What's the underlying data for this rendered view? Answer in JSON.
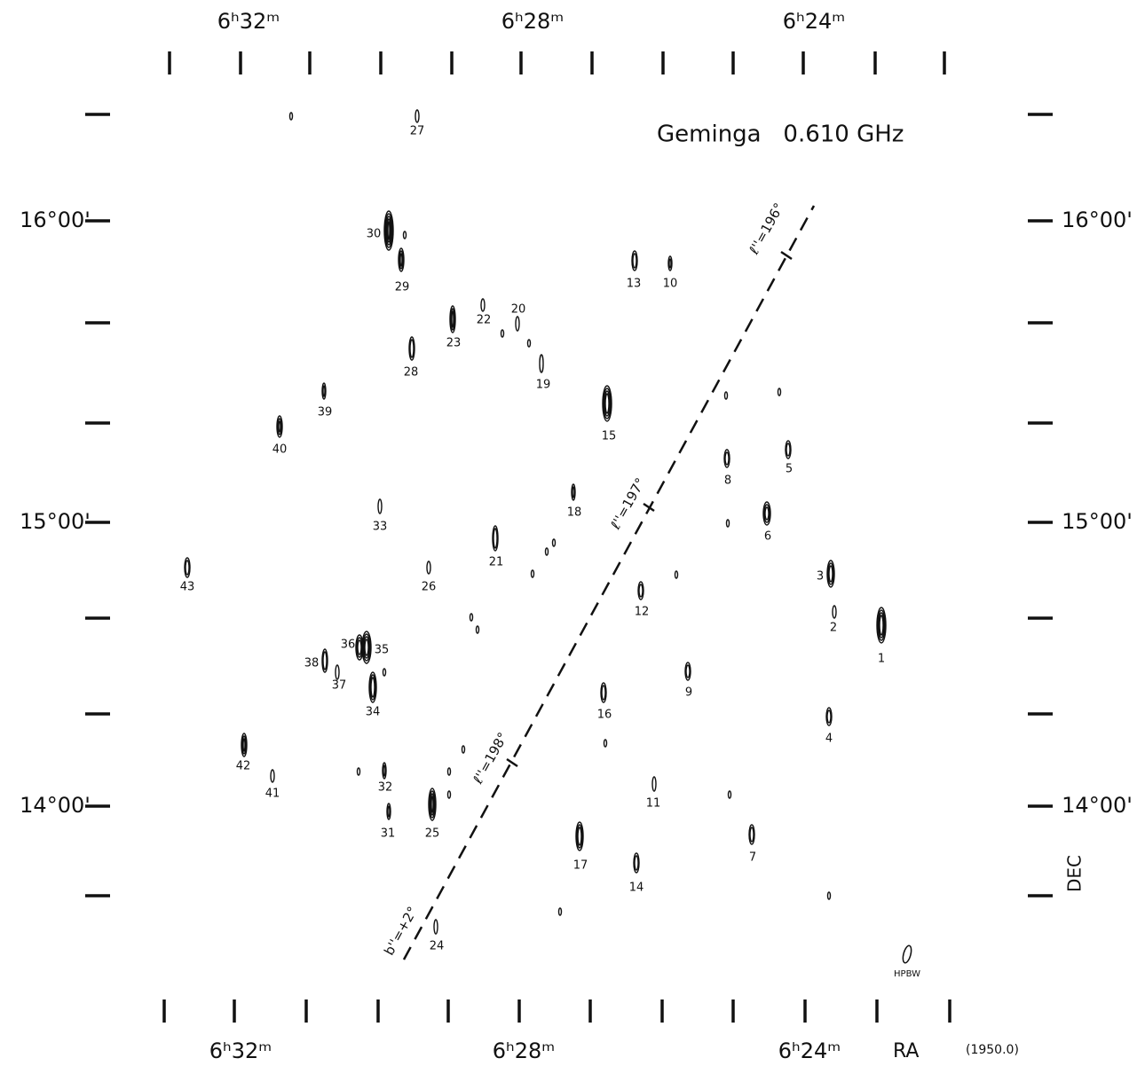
{
  "title": "Geminga   0.610 GHz",
  "ra_labels_top": [
    "6ʰ32ᵐ",
    "6ʰ28ᵐ",
    "6ʰ24ᵐ"
  ],
  "ra_labels_bottom": [
    "6ʰ32ᵐ",
    "6ʰ28ᵐ",
    "6ʰ24ᵐ"
  ],
  "dec_labels_left": [
    "16°00'",
    "15°00'",
    "14°00'"
  ],
  "dec_labels_right": [
    "16°00'",
    "15°00'",
    "14°00'"
  ],
  "axis_labels": {
    "ra": "RA",
    "epoch": "(1950.0)",
    "dec": "DEC"
  },
  "galactic_labels": [
    "ℓ''=196°",
    "ℓ''=197°",
    "ℓ''=198°",
    "b''=+2°"
  ],
  "beam_label": "HPBW",
  "sources": [
    "1",
    "2",
    "3",
    "4",
    "5",
    "6",
    "7",
    "8",
    "9",
    "10",
    "11",
    "12",
    "13",
    "14",
    "15",
    "16",
    "17",
    "18",
    "19",
    "20",
    "21",
    "22",
    "23",
    "24",
    "25",
    "26",
    "27",
    "28",
    "29",
    "30",
    "31",
    "32",
    "33",
    "34",
    "35",
    "36",
    "37",
    "38",
    "39",
    "40",
    "41",
    "42",
    "43"
  ]
}
